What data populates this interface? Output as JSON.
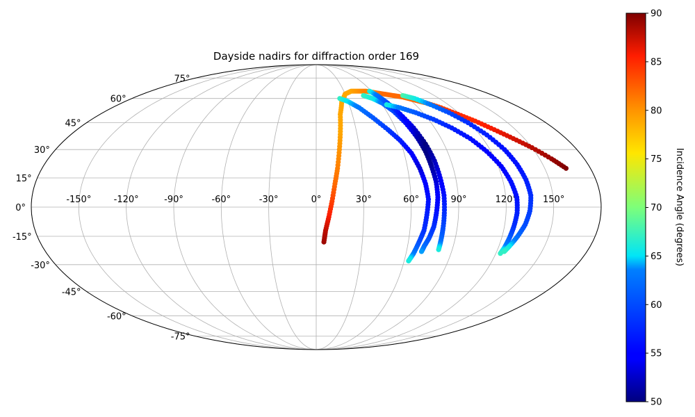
{
  "chart_data": {
    "type": "scatter",
    "projection": "mollweide",
    "title": "Dayside nadirs for diffraction order 169",
    "xlabel": "",
    "ylabel": "",
    "lon_tick_labels": [
      "-150°",
      "-120°",
      "-90°",
      "-60°",
      "-30°",
      "0°",
      "30°",
      "60°",
      "90°",
      "120°",
      "150°"
    ],
    "lon_ticks": [
      -150,
      -120,
      -90,
      -60,
      -30,
      0,
      30,
      60,
      90,
      120,
      150
    ],
    "lat_tick_labels": [
      "-75°",
      "-60°",
      "-45°",
      "-30°",
      "-15°",
      "0°",
      "15°",
      "30°",
      "45°",
      "60°",
      "75°"
    ],
    "lat_ticks": [
      -75,
      -60,
      -45,
      -30,
      -15,
      0,
      15,
      30,
      45,
      60,
      75
    ],
    "xlim": [
      -180,
      180
    ],
    "ylim": [
      -90,
      90
    ],
    "grid": true,
    "colorbar": {
      "label": "Incidence Angle (degrees)",
      "min": 50,
      "max": 90,
      "tick_labels": [
        "50",
        "55",
        "60",
        "65",
        "70",
        "75",
        "80",
        "85",
        "90"
      ],
      "ticks": [
        50,
        55,
        60,
        65,
        70,
        75,
        80,
        85,
        90
      ],
      "colormap": "jet"
    },
    "series": [
      {
        "points": [
          [
            5,
            -18,
            89
          ],
          [
            6,
            -12,
            88
          ],
          [
            8,
            -5,
            86
          ],
          [
            10,
            3,
            84
          ],
          [
            12,
            12,
            82
          ],
          [
            14,
            20,
            81
          ],
          [
            16,
            30,
            80
          ],
          [
            18,
            40,
            79
          ],
          [
            20,
            50,
            79
          ],
          [
            24,
            58,
            79
          ],
          [
            30,
            63,
            79
          ],
          [
            38,
            65,
            79
          ],
          [
            46,
            65,
            80
          ],
          [
            54,
            65,
            81
          ],
          [
            62,
            64,
            81
          ],
          [
            70,
            63,
            82
          ],
          [
            78,
            62,
            82
          ],
          [
            86,
            61,
            82
          ],
          [
            94,
            59,
            82
          ],
          [
            102,
            57,
            83
          ],
          [
            110,
            54,
            84
          ],
          [
            118,
            50,
            85
          ],
          [
            126,
            46,
            85
          ],
          [
            134,
            41,
            86
          ],
          [
            142,
            36,
            87
          ],
          [
            150,
            31,
            88
          ],
          [
            158,
            25,
            89
          ],
          [
            164,
            20,
            90
          ]
        ]
      },
      {
        "points": [
          [
            23,
            60,
            67
          ],
          [
            30,
            58,
            65
          ],
          [
            38,
            54,
            63
          ],
          [
            46,
            48,
            61
          ],
          [
            54,
            41,
            59
          ],
          [
            60,
            35,
            57
          ],
          [
            65,
            28,
            55
          ],
          [
            68,
            20,
            53
          ],
          [
            70,
            12,
            55
          ],
          [
            71,
            4,
            56
          ],
          [
            70,
            -4,
            57
          ],
          [
            69,
            -12,
            58
          ],
          [
            67,
            -18,
            60
          ],
          [
            65,
            -24,
            63
          ],
          [
            63,
            -28,
            66
          ]
        ]
      },
      {
        "points": [
          [
            48,
            62,
            67
          ],
          [
            55,
            60,
            66
          ],
          [
            61,
            57,
            63
          ],
          [
            66,
            52,
            60
          ],
          [
            70,
            45,
            56
          ],
          [
            73,
            37,
            52
          ],
          [
            75,
            29,
            50
          ],
          [
            76,
            21,
            51
          ],
          [
            77,
            13,
            53
          ],
          [
            77,
            5,
            55
          ],
          [
            76,
            -3,
            56
          ],
          [
            75,
            -10,
            58
          ],
          [
            73,
            -16,
            60
          ],
          [
            71,
            -20,
            62
          ],
          [
            70,
            -23,
            64
          ]
        ]
      },
      {
        "points": [
          [
            58,
            65,
            66
          ],
          [
            62,
            62,
            63
          ],
          [
            66,
            57,
            60
          ],
          [
            70,
            50,
            56
          ],
          [
            74,
            42,
            53
          ],
          [
            77,
            33,
            50
          ],
          [
            79,
            24,
            52
          ],
          [
            80,
            15,
            54
          ],
          [
            81,
            6,
            56
          ],
          [
            81,
            -3,
            58
          ],
          [
            81,
            -11,
            60
          ],
          [
            81,
            -17,
            62
          ],
          [
            81,
            -22,
            66
          ]
        ]
      },
      {
        "points": [
          [
            64,
            56,
            66
          ],
          [
            74,
            54,
            63
          ],
          [
            84,
            51,
            61
          ],
          [
            94,
            47,
            59
          ],
          [
            103,
            42,
            57
          ],
          [
            111,
            36,
            56
          ],
          [
            117,
            29,
            55
          ],
          [
            122,
            21,
            55
          ],
          [
            125,
            13,
            56
          ],
          [
            127,
            5,
            56
          ],
          [
            127,
            -3,
            57
          ],
          [
            126,
            -10,
            58
          ],
          [
            125,
            -16,
            61
          ],
          [
            124,
            -21,
            64
          ],
          [
            123,
            -24,
            67
          ]
        ]
      },
      {
        "points": [
          [
            88,
            62,
            68
          ],
          [
            96,
            60,
            66
          ],
          [
            104,
            56,
            63
          ],
          [
            112,
            51,
            60
          ],
          [
            119,
            45,
            58
          ],
          [
            125,
            38,
            57
          ],
          [
            130,
            30,
            56
          ],
          [
            133,
            22,
            56
          ],
          [
            135,
            14,
            57
          ],
          [
            136,
            6,
            58
          ],
          [
            135,
            -2,
            59
          ],
          [
            133,
            -9,
            60
          ],
          [
            130,
            -15,
            62
          ],
          [
            127,
            -20,
            65
          ],
          [
            125,
            -23,
            67
          ]
        ]
      }
    ]
  }
}
